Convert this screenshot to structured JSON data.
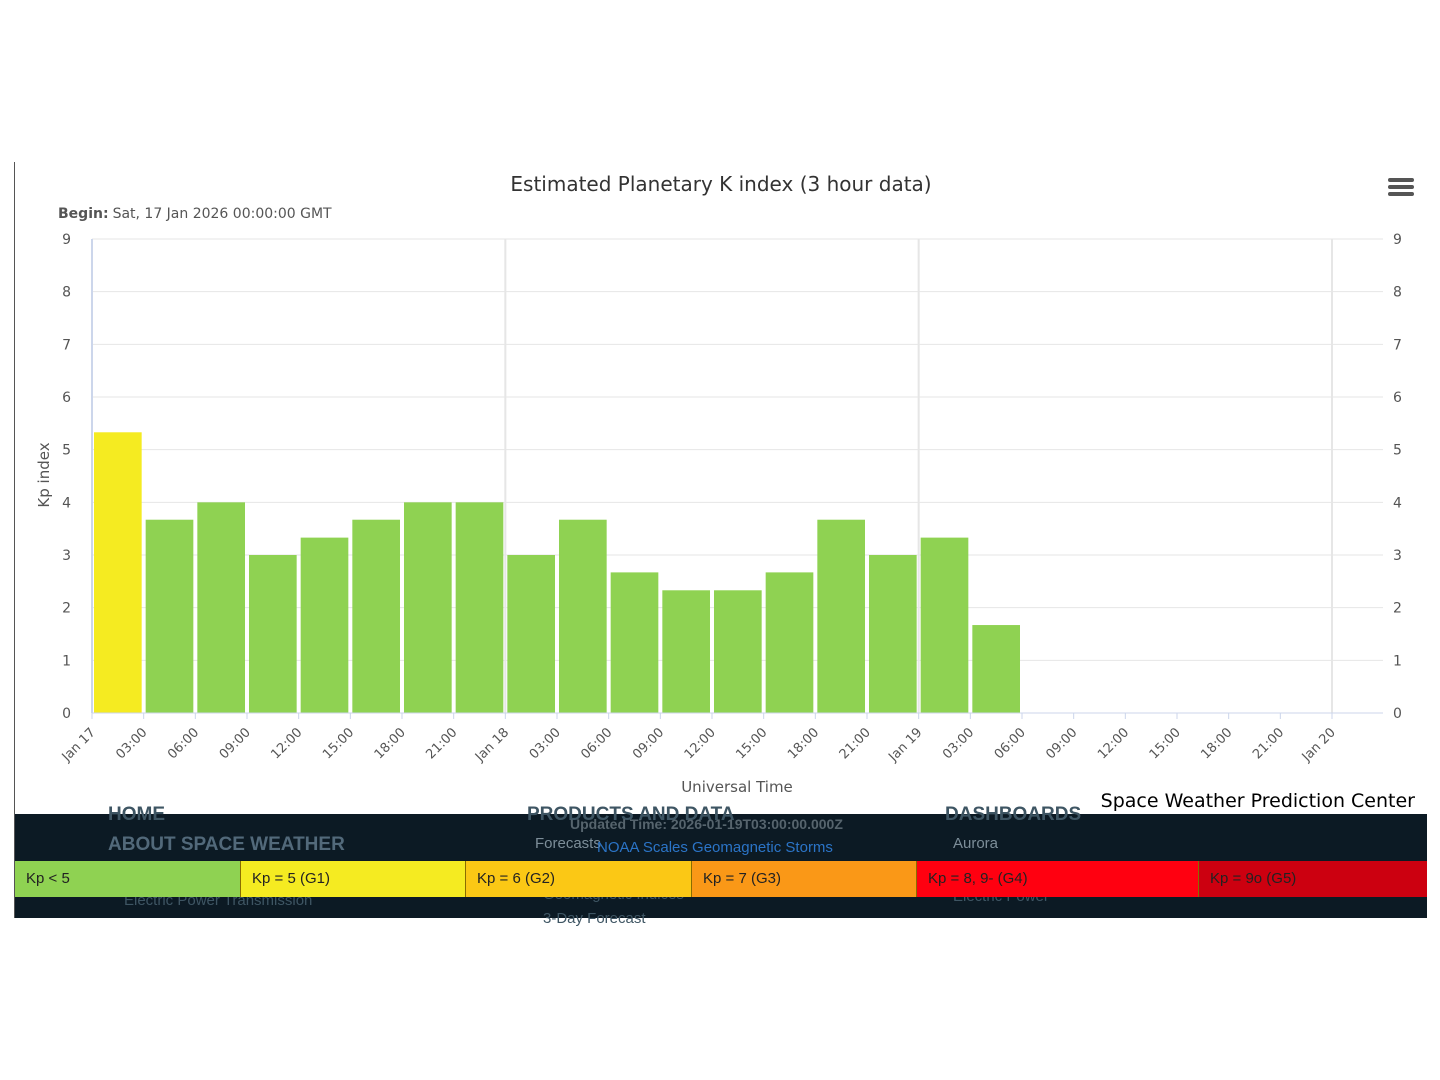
{
  "chart_data": {
    "type": "bar",
    "title": "Estimated Planetary K index (3 hour data)",
    "subtitle_label": "Begin:",
    "subtitle_value": "Sat, 17 Jan 2026 00:00:00 GMT",
    "xlabel": "Universal Time",
    "ylabel": "Kp index",
    "ylim": [
      0,
      9
    ],
    "y_ticks": [
      "0",
      "1",
      "2",
      "3",
      "4",
      "5",
      "6",
      "7",
      "8",
      "9"
    ],
    "x_tick_labels": [
      "Jan 17",
      "03:00",
      "06:00",
      "09:00",
      "12:00",
      "15:00",
      "18:00",
      "21:00",
      "Jan 18",
      "03:00",
      "06:00",
      "09:00",
      "12:00",
      "15:00",
      "18:00",
      "21:00",
      "Jan 19",
      "03:00",
      "06:00",
      "09:00",
      "12:00",
      "15:00",
      "18:00",
      "21:00",
      "Jan 20"
    ],
    "categories": [
      "Jan 17 00:00",
      "Jan 17 03:00",
      "Jan 17 06:00",
      "Jan 17 09:00",
      "Jan 17 12:00",
      "Jan 17 15:00",
      "Jan 17 18:00",
      "Jan 17 21:00",
      "Jan 18 00:00",
      "Jan 18 03:00",
      "Jan 18 06:00",
      "Jan 18 09:00",
      "Jan 18 12:00",
      "Jan 18 15:00",
      "Jan 18 18:00",
      "Jan 18 21:00",
      "Jan 19 00:00",
      "Jan 19 03:00"
    ],
    "values": [
      5.33,
      3.67,
      4.0,
      3.0,
      3.33,
      3.67,
      4.0,
      4.0,
      3.0,
      3.67,
      2.67,
      2.33,
      2.33,
      2.67,
      3.67,
      3.0,
      3.33,
      1.67
    ],
    "bar_colors": [
      "#f5eb21",
      "#8fd252",
      "#8fd252",
      "#8fd252",
      "#8fd252",
      "#8fd252",
      "#8fd252",
      "#8fd252",
      "#8fd252",
      "#8fd252",
      "#8fd252",
      "#8fd252",
      "#8fd252",
      "#8fd252",
      "#8fd252",
      "#8fd252",
      "#8fd252",
      "#8fd252"
    ],
    "grid": true,
    "right_axis": true
  },
  "credit": "Space Weather Prediction Center",
  "footer": {
    "updated_time": "Updated Time: 2026-01-19T03:00:00.000Z",
    "scales_link": "NOAA Scales Geomagnetic Storms",
    "nav": {
      "home": "HOME",
      "about": "ABOUT SPACE WEATHER",
      "electric_transmission": "Electric Power Transmission",
      "products": "PRODUCTS AND DATA",
      "forecasts": "Forecasts",
      "geomag_indices": "Geomagnetic Indices",
      "three_day": "3-Day Forecast",
      "dashboards": "DASHBOARDS",
      "aurora": "Aurora",
      "electric_power": "Electric Power"
    },
    "legend": [
      {
        "label": "Kp < 5",
        "color": "#8fd252"
      },
      {
        "label": "Kp = 5 (G1)",
        "color": "#f5eb21"
      },
      {
        "label": "Kp = 6 (G2)",
        "color": "#fbc815"
      },
      {
        "label": "Kp = 7 (G3)",
        "color": "#fa9817"
      },
      {
        "label": "Kp = 8, 9- (G4)",
        "color": "#ff0010"
      },
      {
        "label": "Kp = 9o (G5)",
        "color": "#cc0010"
      }
    ]
  }
}
